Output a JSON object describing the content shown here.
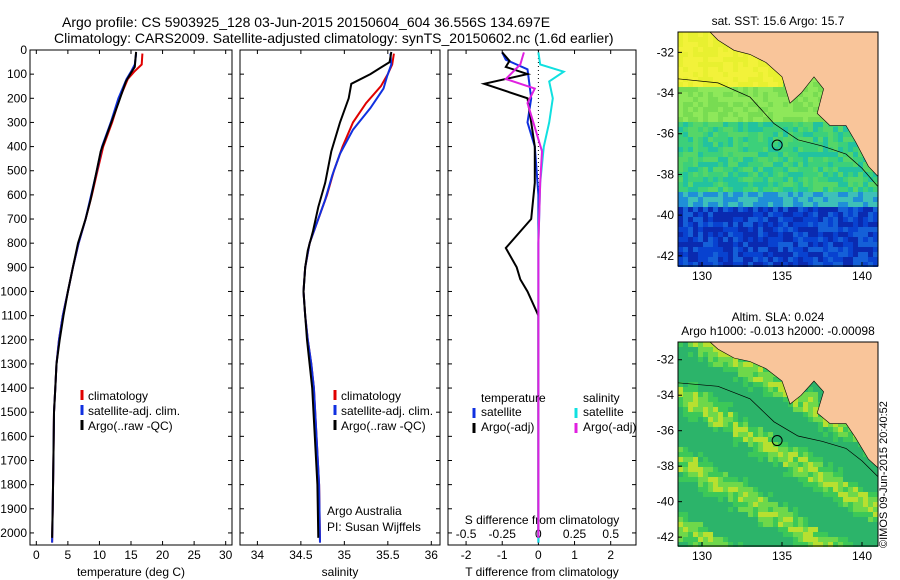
{
  "title_line1": "Argo profile: CS 5903925_128 03-Jun-2015 20150604_604 36.556S 134.697E",
  "title_line2": "Climatology: CARS2009. Satellite-adjusted climatology: synTS_20150602.nc (1.6d earlier)",
  "stamp": "©IMOS 09-Jun-2015 20:40:52",
  "colors": {
    "climatology": "#e00000",
    "satellite": "#1030e0",
    "argo": "#000000",
    "sal_sat": "#10e0e0",
    "sal_argo": "#e020e0",
    "land": "#f9c59a"
  },
  "chart_data": [
    {
      "type": "line",
      "name": "temperature",
      "xlabel": "temperature (deg C)",
      "xlim": [
        -1,
        31
      ],
      "ylim": [
        2050,
        0
      ],
      "xticks": [
        0,
        5,
        10,
        15,
        20,
        25,
        30
      ],
      "yticks": [
        0,
        100,
        200,
        300,
        400,
        500,
        600,
        700,
        800,
        900,
        1000,
        1100,
        1200,
        1300,
        1400,
        1500,
        1600,
        1700,
        1800,
        1900,
        2000
      ],
      "legend": [
        "climatology",
        "satellite-adj. clim.",
        "Argo(..raw -QC)"
      ],
      "series": [
        {
          "name": "climatology",
          "color": "climatology",
          "points": [
            [
              16.8,
              15
            ],
            [
              16.7,
              60
            ],
            [
              15.5,
              90
            ],
            [
              14.5,
              120
            ],
            [
              13.2,
              200
            ],
            [
              12.0,
              300
            ],
            [
              10.6,
              400
            ],
            [
              9.7,
              500
            ],
            [
              8.8,
              600
            ],
            [
              7.8,
              700
            ],
            [
              6.7,
              800
            ],
            [
              5.8,
              900
            ],
            [
              5.0,
              1000
            ],
            [
              4.2,
              1100
            ],
            [
              3.6,
              1200
            ],
            [
              3.2,
              1300
            ],
            [
              3.0,
              1400
            ],
            [
              2.8,
              1500
            ],
            [
              2.7,
              1700
            ],
            [
              2.6,
              1900
            ],
            [
              2.5,
              2040
            ]
          ]
        },
        {
          "name": "satellite-adj. clim.",
          "color": "satellite",
          "points": [
            [
              15.8,
              15
            ],
            [
              15.6,
              60
            ],
            [
              15.0,
              90
            ],
            [
              14.3,
              120
            ],
            [
              13.0,
              200
            ],
            [
              11.8,
              300
            ],
            [
              10.4,
              400
            ],
            [
              9.6,
              500
            ],
            [
              8.7,
              600
            ],
            [
              7.8,
              700
            ],
            [
              6.7,
              800
            ],
            [
              5.8,
              900
            ],
            [
              5.0,
              1000
            ],
            [
              4.2,
              1100
            ],
            [
              3.6,
              1200
            ],
            [
              3.2,
              1300
            ],
            [
              3.0,
              1400
            ],
            [
              2.8,
              1500
            ],
            [
              2.7,
              1700
            ],
            [
              2.6,
              1900
            ],
            [
              2.5,
              2040
            ]
          ]
        },
        {
          "name": "Argo(..raw -QC)",
          "color": "argo",
          "points": [
            [
              15.8,
              8
            ],
            [
              15.7,
              40
            ],
            [
              15.6,
              70
            ],
            [
              15.0,
              95
            ],
            [
              14.2,
              130
            ],
            [
              13.0,
              220
            ],
            [
              11.6,
              320
            ],
            [
              10.2,
              420
            ],
            [
              9.4,
              520
            ],
            [
              8.6,
              620
            ],
            [
              7.8,
              700
            ],
            [
              6.6,
              800
            ],
            [
              5.8,
              900
            ],
            [
              5.0,
              1000
            ],
            [
              4.3,
              1100
            ],
            [
              3.7,
              1200
            ],
            [
              3.2,
              1300
            ],
            [
              3.0,
              1400
            ],
            [
              2.8,
              1500
            ],
            [
              2.7,
              1700
            ],
            [
              2.6,
              1900
            ],
            [
              2.5,
              2020
            ]
          ]
        }
      ]
    },
    {
      "type": "line",
      "name": "salinity",
      "xlabel": "salinity",
      "xlim": [
        33.8,
        36.1
      ],
      "ylim": [
        2050,
        0
      ],
      "xticks": [
        34,
        34.5,
        35,
        35.5,
        36
      ],
      "xticklabels": [
        "34",
        "34.5",
        "35",
        "35.5",
        "36"
      ],
      "legend": [
        "climatology",
        "satellite-adj. clim.",
        "Argo(..raw -QC)"
      ],
      "annotation": [
        "Argo Australia",
        "PI: Susan Wijffels"
      ],
      "series": [
        {
          "name": "climatology",
          "color": "climatology",
          "points": [
            [
              35.57,
              15
            ],
            [
              35.55,
              60
            ],
            [
              35.5,
              100
            ],
            [
              35.42,
              150
            ],
            [
              35.25,
              220
            ],
            [
              35.1,
              300
            ],
            [
              34.98,
              400
            ],
            [
              34.88,
              500
            ],
            [
              34.8,
              600
            ],
            [
              34.7,
              700
            ],
            [
              34.6,
              800
            ],
            [
              34.55,
              900
            ],
            [
              34.53,
              1000
            ],
            [
              34.55,
              1100
            ],
            [
              34.58,
              1200
            ],
            [
              34.62,
              1300
            ],
            [
              34.65,
              1400
            ],
            [
              34.68,
              1600
            ],
            [
              34.71,
              1800
            ],
            [
              34.72,
              2040
            ]
          ]
        },
        {
          "name": "satellite-adj. clim.",
          "color": "satellite",
          "points": [
            [
              35.53,
              15
            ],
            [
              35.54,
              60
            ],
            [
              35.49,
              110
            ],
            [
              35.45,
              160
            ],
            [
              35.3,
              240
            ],
            [
              35.1,
              330
            ],
            [
              34.95,
              430
            ],
            [
              34.86,
              520
            ],
            [
              34.78,
              620
            ],
            [
              34.68,
              720
            ],
            [
              34.6,
              800
            ],
            [
              34.55,
              900
            ],
            [
              34.53,
              1000
            ],
            [
              34.55,
              1100
            ],
            [
              34.58,
              1200
            ],
            [
              34.62,
              1300
            ],
            [
              34.65,
              1400
            ],
            [
              34.68,
              1600
            ],
            [
              34.71,
              1800
            ],
            [
              34.72,
              2040
            ]
          ]
        },
        {
          "name": "Argo(..raw -QC)",
          "color": "argo",
          "points": [
            [
              35.54,
              8
            ],
            [
              35.52,
              50
            ],
            [
              35.3,
              100
            ],
            [
              35.08,
              140
            ],
            [
              35.05,
              200
            ],
            [
              34.95,
              300
            ],
            [
              34.85,
              420
            ],
            [
              34.78,
              550
            ],
            [
              34.7,
              650
            ],
            [
              34.64,
              750
            ],
            [
              34.58,
              830
            ],
            [
              34.55,
              900
            ],
            [
              34.53,
              1000
            ],
            [
              34.55,
              1100
            ],
            [
              34.57,
              1200
            ],
            [
              34.6,
              1300
            ],
            [
              34.63,
              1400
            ],
            [
              34.66,
              1600
            ],
            [
              34.69,
              1800
            ],
            [
              34.7,
              2020
            ]
          ]
        }
      ]
    },
    {
      "type": "line",
      "name": "difference",
      "xlabel": "T difference from climatology",
      "xlabel2": "S difference from climatology",
      "xlim": [
        -2.5,
        2.7
      ],
      "ylim": [
        2050,
        0
      ],
      "xticks": [
        -2,
        -1,
        0,
        1,
        2
      ],
      "xticks2": [
        -0.5,
        -0.25,
        0,
        0.25,
        0.5
      ],
      "xticks2labels": [
        "-0.5",
        "-0.25",
        "0",
        "0.25",
        "0.5"
      ],
      "legend_left_title": "temperature",
      "legend_right_title": "salinity",
      "legend_left": [
        "satellite",
        "Argo(-adj)"
      ],
      "legend_right": [
        "satellite",
        "Argo(-adj)"
      ],
      "series": [
        {
          "name": "T satellite",
          "color": "satellite",
          "points": [
            [
              -1.0,
              10
            ],
            [
              -0.9,
              40
            ],
            [
              -0.3,
              80
            ],
            [
              -0.2,
              200
            ],
            [
              -0.3,
              300
            ],
            [
              -0.1,
              400
            ],
            [
              0,
              600
            ],
            [
              0,
              2040
            ]
          ]
        },
        {
          "name": "T Argo(-adj)",
          "color": "argo",
          "points": [
            [
              -1.0,
              10
            ],
            [
              -0.8,
              45
            ],
            [
              -0.9,
              70
            ],
            [
              -0.3,
              100
            ],
            [
              -1.5,
              140
            ],
            [
              -0.3,
              200
            ],
            [
              -0.2,
              300
            ],
            [
              -0.1,
              400
            ],
            [
              -0.1,
              550
            ],
            [
              -0.2,
              700
            ],
            [
              -0.9,
              820
            ],
            [
              -0.6,
              900
            ],
            [
              -0.5,
              950
            ],
            [
              -0.3,
              1000
            ],
            [
              0,
              1100
            ],
            [
              0,
              2020
            ]
          ]
        },
        {
          "name": "S satellite",
          "color": "sal_sat",
          "points": [
            [
              0,
              10
            ],
            [
              0.05,
              60
            ],
            [
              0.7,
              90
            ],
            [
              0.3,
              130
            ],
            [
              0.4,
              200
            ],
            [
              0.3,
              300
            ],
            [
              0.15,
              400
            ],
            [
              0.05,
              550
            ],
            [
              0,
              800
            ],
            [
              0,
              2040
            ]
          ]
        },
        {
          "name": "S Argo(-adj)",
          "color": "sal_argo",
          "points": [
            [
              -0.4,
              10
            ],
            [
              -0.5,
              60
            ],
            [
              -0.9,
              120
            ],
            [
              -0.1,
              160
            ],
            [
              -0.3,
              220
            ],
            [
              -0.1,
              320
            ],
            [
              0.1,
              420
            ],
            [
              0.05,
              550
            ],
            [
              0,
              800
            ],
            [
              0,
              2020
            ]
          ]
        }
      ]
    },
    {
      "type": "heatmap",
      "name": "sst-map",
      "title": "sat. SST: 15.6 Argo: 15.7",
      "xlim": [
        128.5,
        141
      ],
      "ylim": [
        -42.5,
        -31
      ],
      "xticks": [
        130,
        135,
        140
      ],
      "yticks": [
        -32,
        -34,
        -36,
        -38,
        -40,
        -42
      ],
      "marker": [
        134.697,
        -36.556
      ]
    },
    {
      "type": "heatmap",
      "name": "sla-map",
      "title": "Altim. SLA: 0.024",
      "subtitle": "Argo h1000: -0.013 h2000: -0.00098",
      "xlim": [
        128.5,
        141
      ],
      "ylim": [
        -42.5,
        -31
      ],
      "xticks": [
        130,
        135,
        140
      ],
      "yticks": [
        -32,
        -34,
        -36,
        -38,
        -40,
        -42
      ],
      "marker": [
        134.697,
        -36.556
      ]
    }
  ]
}
